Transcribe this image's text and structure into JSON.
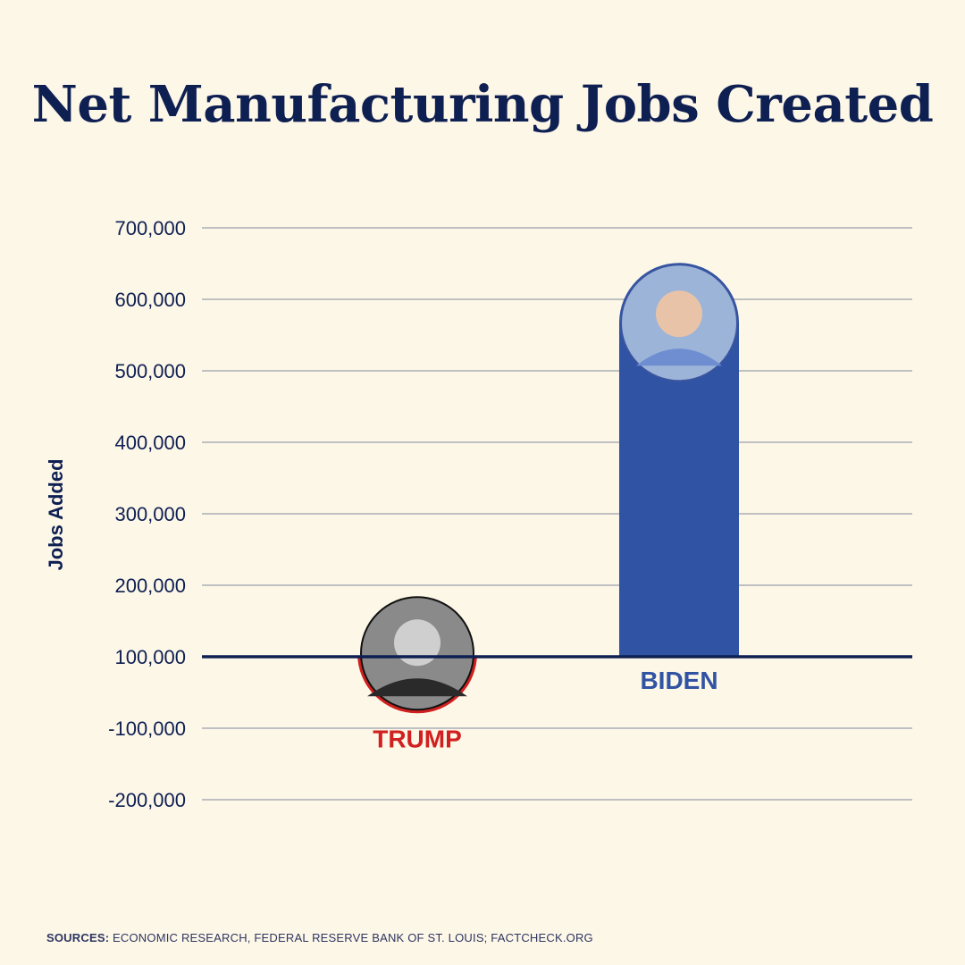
{
  "title": "Net Manufacturing Jobs Created",
  "chart_data": {
    "type": "bar",
    "title": "Net Manufacturing Jobs Created",
    "ylabel": "Jobs Added",
    "xlabel": "",
    "yticks": [
      700000,
      600000,
      500000,
      400000,
      300000,
      200000,
      100000,
      -100000,
      -200000
    ],
    "ytick_labels": [
      "700,000",
      "600,000",
      "500,000",
      "400,000",
      "300,000",
      "200,000",
      "100,000",
      "-100,000",
      "-200,000"
    ],
    "ylim": [
      -200000,
      700000
    ],
    "grid": true,
    "baseline": 100000,
    "categories": [
      "TRUMP",
      "BIDEN"
    ],
    "values": [
      -78000,
      651000
    ],
    "colors": {
      "TRUMP": "#d0201f",
      "BIDEN": "#3053a3",
      "text": "#0e1f52",
      "grid": "#a9adb6"
    },
    "portraits": [
      "trump-portrait",
      "biden-portrait"
    ]
  },
  "source": {
    "label": "SOURCES:",
    "text": " ECONOMIC RESEARCH, FEDERAL RESERVE BANK OF ST. LOUIS; FACTCHECK.ORG"
  }
}
